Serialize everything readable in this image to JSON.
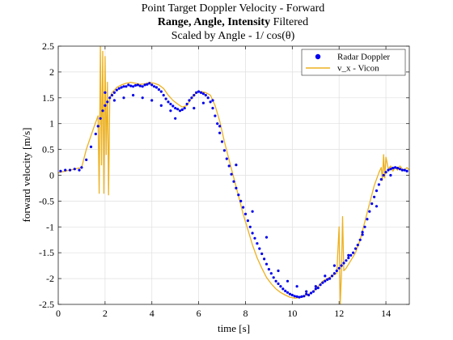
{
  "chart_data": {
    "type": "scatter",
    "title_lines": [
      {
        "text": "Point Target Doppler Velocity - Forward"
      },
      {
        "bold": "Range, Angle, Intensity",
        "rest": " Filtered"
      },
      {
        "text": "Scaled by Angle - 1/ cos(θ)"
      }
    ],
    "xlabel": "time [s]",
    "ylabel": "forward velocity [m/s]",
    "xlim": [
      0,
      15
    ],
    "ylim": [
      -2.5,
      2.5
    ],
    "x_ticks": [
      0,
      2,
      4,
      6,
      8,
      10,
      12,
      14
    ],
    "y_ticks": [
      -2.5,
      -2,
      -1.5,
      -1,
      -0.5,
      0,
      0.5,
      1,
      1.5,
      2,
      2.5
    ],
    "grid": true,
    "legend_position": "top-right",
    "series": [
      {
        "name": "Radar Doppler",
        "kind": "scatter",
        "color": "#0000ee",
        "x": [
          0.1,
          0.3,
          0.5,
          0.7,
          0.9,
          1.0,
          1.2,
          1.4,
          1.6,
          1.7,
          1.8,
          1.9,
          2.0,
          2.1,
          2.2,
          2.3,
          2.4,
          2.5,
          2.6,
          2.7,
          2.8,
          2.9,
          3.0,
          3.1,
          3.2,
          3.3,
          3.4,
          3.5,
          3.6,
          3.7,
          3.8,
          3.9,
          4.0,
          4.1,
          4.2,
          4.3,
          4.4,
          4.5,
          4.6,
          4.7,
          4.8,
          4.9,
          5.0,
          5.1,
          5.2,
          5.3,
          5.4,
          5.5,
          5.6,
          5.7,
          5.8,
          5.9,
          6.0,
          6.1,
          6.2,
          6.3,
          6.4,
          6.5,
          6.6,
          6.7,
          6.8,
          6.9,
          7.0,
          7.1,
          7.2,
          7.3,
          7.4,
          7.5,
          7.6,
          7.7,
          7.8,
          7.9,
          8.0,
          8.1,
          8.2,
          8.3,
          8.4,
          8.5,
          8.6,
          8.7,
          8.8,
          8.9,
          9.0,
          9.1,
          9.2,
          9.3,
          9.4,
          9.5,
          9.6,
          9.7,
          9.8,
          9.9,
          10.0,
          10.1,
          10.2,
          10.3,
          10.4,
          10.5,
          10.6,
          10.7,
          10.8,
          10.9,
          11.0,
          11.1,
          11.2,
          11.3,
          11.4,
          11.5,
          11.6,
          11.7,
          11.8,
          11.9,
          12.0,
          12.1,
          12.2,
          12.3,
          12.4,
          12.5,
          12.6,
          12.7,
          12.8,
          12.9,
          13.0,
          13.1,
          13.2,
          13.3,
          13.4,
          13.5,
          13.6,
          13.7,
          13.8,
          13.9,
          14.0,
          14.1,
          14.2,
          14.3,
          14.4,
          14.5,
          14.6,
          14.7,
          14.8,
          14.9,
          2.0,
          2.4,
          2.8,
          3.2,
          3.6,
          4.0,
          4.4,
          4.8,
          5.0,
          5.8,
          6.2,
          6.6,
          6.9,
          7.6,
          8.3,
          8.9,
          9.4,
          9.8,
          10.2,
          10.6,
          11.0,
          11.4,
          11.8,
          12.4,
          13.0,
          13.6,
          14.2
        ],
        "y": [
          0.08,
          0.1,
          0.1,
          0.12,
          0.1,
          0.15,
          0.3,
          0.55,
          0.8,
          0.95,
          1.1,
          1.25,
          1.35,
          1.42,
          1.5,
          1.55,
          1.6,
          1.65,
          1.68,
          1.7,
          1.72,
          1.72,
          1.75,
          1.73,
          1.72,
          1.74,
          1.75,
          1.73,
          1.72,
          1.75,
          1.76,
          1.78,
          1.75,
          1.72,
          1.7,
          1.66,
          1.62,
          1.55,
          1.48,
          1.42,
          1.38,
          1.34,
          1.3,
          1.28,
          1.25,
          1.27,
          1.3,
          1.38,
          1.45,
          1.5,
          1.55,
          1.6,
          1.62,
          1.6,
          1.58,
          1.55,
          1.5,
          1.42,
          1.3,
          1.15,
          1.0,
          0.82,
          0.65,
          0.48,
          0.32,
          0.18,
          0.02,
          -0.12,
          -0.25,
          -0.38,
          -0.5,
          -0.62,
          -0.75,
          -0.88,
          -1.0,
          -1.12,
          -1.22,
          -1.32,
          -1.42,
          -1.52,
          -1.62,
          -1.72,
          -1.82,
          -1.9,
          -1.98,
          -2.05,
          -2.1,
          -2.15,
          -2.2,
          -2.24,
          -2.27,
          -2.3,
          -2.32,
          -2.34,
          -2.35,
          -2.36,
          -2.35,
          -2.34,
          -2.3,
          -2.32,
          -2.28,
          -2.25,
          -2.2,
          -2.18,
          -2.12,
          -2.08,
          -2.05,
          -2.02,
          -2.0,
          -1.95,
          -1.9,
          -1.85,
          -1.8,
          -1.75,
          -1.7,
          -1.65,
          -1.6,
          -1.55,
          -1.5,
          -1.42,
          -1.35,
          -1.25,
          -1.15,
          -1.0,
          -0.85,
          -0.7,
          -0.55,
          -0.42,
          -0.3,
          -0.18,
          -0.08,
          0.0,
          0.06,
          0.1,
          0.12,
          0.14,
          0.15,
          0.14,
          0.12,
          0.1,
          0.1,
          0.08,
          1.6,
          1.45,
          1.5,
          1.55,
          1.5,
          1.45,
          1.35,
          1.25,
          1.1,
          1.3,
          1.4,
          1.45,
          0.95,
          0.2,
          -0.7,
          -1.2,
          -1.85,
          -2.05,
          -2.15,
          -2.25,
          -2.15,
          -1.95,
          -1.75,
          -1.55,
          -1.1,
          -0.6,
          0.0
        ]
      },
      {
        "name": "v_x - Vicon",
        "kind": "line",
        "color": "#edb120",
        "x": [
          0.0,
          0.5,
          1.0,
          1.2,
          1.5,
          1.7,
          1.75,
          1.8,
          1.85,
          1.9,
          1.95,
          2.0,
          2.05,
          2.1,
          2.15,
          2.2,
          2.3,
          2.5,
          2.7,
          2.9,
          3.1,
          3.3,
          3.5,
          3.7,
          3.9,
          4.1,
          4.3,
          4.5,
          4.7,
          4.9,
          5.1,
          5.3,
          5.5,
          5.7,
          5.9,
          6.1,
          6.3,
          6.5,
          6.7,
          6.9,
          7.1,
          7.3,
          7.5,
          7.7,
          7.9,
          8.1,
          8.3,
          8.5,
          8.7,
          8.9,
          9.1,
          9.3,
          9.5,
          9.7,
          9.9,
          10.1,
          10.3,
          10.5,
          10.7,
          10.9,
          11.1,
          11.3,
          11.5,
          11.7,
          11.9,
          12.0,
          12.05,
          12.1,
          12.15,
          12.2,
          12.3,
          12.5,
          12.7,
          12.9,
          13.1,
          13.3,
          13.5,
          13.7,
          13.8,
          13.85,
          13.9,
          13.95,
          14.0,
          14.1,
          14.2,
          14.3,
          14.4,
          14.5,
          14.6,
          14.7,
          14.8,
          14.9,
          15.0
        ],
        "y": [
          0.05,
          0.1,
          0.15,
          0.5,
          0.9,
          1.15,
          -0.35,
          2.5,
          0.2,
          2.4,
          -0.35,
          2.3,
          0.4,
          1.8,
          -0.38,
          1.5,
          1.6,
          1.7,
          1.75,
          1.78,
          1.8,
          1.78,
          1.76,
          1.77,
          1.8,
          1.78,
          1.75,
          1.68,
          1.55,
          1.45,
          1.38,
          1.32,
          1.35,
          1.5,
          1.6,
          1.62,
          1.6,
          1.55,
          1.35,
          1.05,
          0.65,
          0.3,
          -0.05,
          -0.4,
          -0.75,
          -1.05,
          -1.35,
          -1.6,
          -1.8,
          -1.98,
          -2.1,
          -2.2,
          -2.27,
          -2.32,
          -2.36,
          -2.38,
          -2.37,
          -2.35,
          -2.3,
          -2.25,
          -2.15,
          -2.05,
          -2.0,
          -1.95,
          -1.9,
          -1.0,
          -2.5,
          -1.9,
          -0.8,
          -1.85,
          -1.8,
          -1.65,
          -1.5,
          -1.25,
          -0.9,
          -0.55,
          -0.2,
          0.05,
          0.15,
          -0.1,
          0.4,
          -0.05,
          0.35,
          0.12,
          0.18,
          0.08,
          0.15,
          0.1,
          0.18,
          0.12,
          0.1,
          0.15,
          0.1
        ]
      }
    ]
  }
}
